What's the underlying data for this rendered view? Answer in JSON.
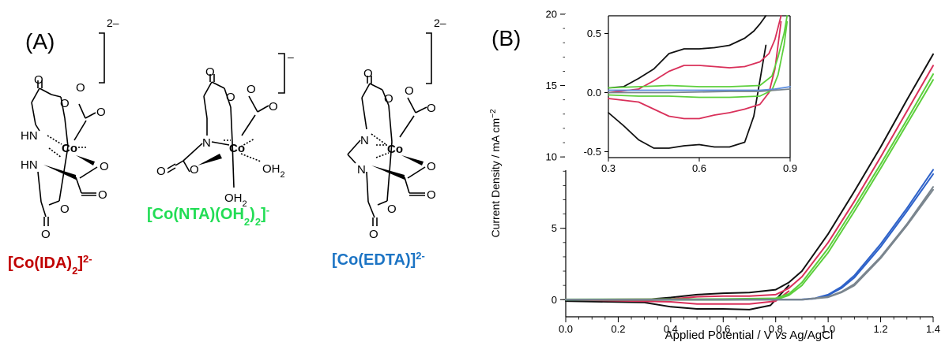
{
  "panel_a": {
    "label": "(A)",
    "charges": [
      "2–",
      "–",
      "2–"
    ],
    "atoms": {
      "co": "Co",
      "o": "O",
      "n": "N",
      "hn": "HN",
      "oh2": "OH",
      "oh2_sub": "2"
    },
    "complexes": [
      {
        "name_main": "[Co(IDA)",
        "name_sub": "2",
        "name_close": "]",
        "name_sup": "2-",
        "color": "#c00000"
      },
      {
        "name_main": "[Co(NTA)(OH",
        "name_sub": "2",
        "name_close": ")",
        "name_sub2": "2",
        "name_close2": "]",
        "name_sup": "-",
        "color": "#22dd55"
      },
      {
        "name_main": "[Co(EDTA)]",
        "name_sup": "2-",
        "color": "#1c74c4"
      }
    ]
  },
  "panel_b": {
    "label": "(B)"
  },
  "chart_data": [
    {
      "type": "line",
      "xlabel_parts": [
        "Applied Potential / V ",
        "vs",
        " Ag/AgCl"
      ],
      "ylabel": "Current Density / mA cm",
      "ylabel_sup": "−2",
      "xlim": [
        0.0,
        1.4
      ],
      "ylim": [
        -1.2,
        20
      ],
      "xticks": [
        "0.0",
        "0.2",
        "0.4",
        "0.6",
        "0.8",
        "1.0",
        "1.2",
        "1.4"
      ],
      "yticks": [
        "0",
        "5",
        "10",
        "15",
        "20"
      ],
      "grid": false,
      "series": [
        {
          "color": "#111111",
          "x": [
            0.0,
            0.3,
            0.4,
            0.5,
            0.6,
            0.7,
            0.8,
            0.85,
            0.9,
            1.0,
            1.1,
            1.2,
            1.3,
            1.4
          ],
          "y": [
            -0.05,
            0.0,
            0.15,
            0.35,
            0.45,
            0.5,
            0.7,
            1.2,
            2.0,
            4.6,
            7.6,
            10.7,
            14.0,
            17.2
          ]
        },
        {
          "color": "#111111",
          "x": [
            0.0,
            0.3,
            0.4,
            0.5,
            0.6,
            0.7,
            0.78,
            0.85
          ],
          "y": [
            -0.1,
            -0.2,
            -0.5,
            -0.65,
            -0.65,
            -0.7,
            -0.4,
            1.0
          ]
        },
        {
          "color": "#d9305a",
          "x": [
            0.0,
            0.4,
            0.5,
            0.6,
            0.7,
            0.8,
            0.85,
            0.9,
            1.0,
            1.1,
            1.2,
            1.3,
            1.4
          ],
          "y": [
            0.0,
            0.05,
            0.2,
            0.25,
            0.25,
            0.35,
            0.8,
            1.6,
            4.0,
            6.9,
            10.0,
            13.2,
            16.4
          ]
        },
        {
          "color": "#d9305a",
          "x": [
            0.0,
            0.4,
            0.5,
            0.6,
            0.7,
            0.8,
            0.85
          ],
          "y": [
            0.0,
            -0.15,
            -0.3,
            -0.3,
            -0.3,
            -0.1,
            0.6
          ]
        },
        {
          "color": "#5ccf3c",
          "x": [
            0.0,
            0.6,
            0.8,
            0.85,
            0.9,
            1.0,
            1.1,
            1.2,
            1.3,
            1.4
          ],
          "y": [
            0.02,
            0.05,
            0.1,
            0.4,
            1.2,
            3.6,
            6.5,
            9.5,
            12.6,
            15.8
          ]
        },
        {
          "color": "#5ccf3c",
          "x": [
            0.0,
            0.6,
            0.8,
            0.85,
            0.9,
            1.0,
            1.1,
            1.2,
            1.3,
            1.4
          ],
          "y": [
            -0.02,
            -0.02,
            0.0,
            0.3,
            1.0,
            3.3,
            6.2,
            9.2,
            12.3,
            15.4
          ]
        },
        {
          "color": "#2e62c9",
          "x": [
            0.0,
            0.9,
            0.95,
            1.0,
            1.05,
            1.1,
            1.2,
            1.3,
            1.4
          ],
          "y": [
            0.0,
            0.02,
            0.1,
            0.35,
            0.9,
            1.7,
            3.9,
            6.4,
            9.1
          ]
        },
        {
          "color": "#2e62c9",
          "x": [
            0.0,
            0.9,
            0.95,
            1.0,
            1.05,
            1.1,
            1.2,
            1.3,
            1.4
          ],
          "y": [
            0.0,
            0.0,
            0.07,
            0.3,
            0.8,
            1.55,
            3.7,
            6.2,
            8.8
          ]
        },
        {
          "color": "#7a858e",
          "x": [
            0.0,
            0.9,
            1.0,
            1.05,
            1.1,
            1.2,
            1.3,
            1.4
          ],
          "y": [
            0.0,
            0.0,
            0.2,
            0.55,
            1.1,
            3.0,
            5.3,
            7.9
          ]
        },
        {
          "color": "#7a858e",
          "x": [
            0.0,
            0.9,
            1.0,
            1.05,
            1.1,
            1.2,
            1.3,
            1.4
          ],
          "y": [
            0.0,
            0.0,
            0.17,
            0.5,
            1.0,
            2.9,
            5.2,
            7.7
          ]
        }
      ]
    },
    {
      "type": "line",
      "inset": true,
      "xlim": [
        0.3,
        0.9
      ],
      "ylim": [
        -0.55,
        0.65
      ],
      "xticks": [
        "0.3",
        "0.6",
        "0.9"
      ],
      "yticks": [
        "-0.5",
        "0.0",
        "0.5"
      ],
      "grid": false,
      "series": [
        {
          "color": "#111111",
          "x": [
            0.3,
            0.35,
            0.4,
            0.45,
            0.5,
            0.55,
            0.6,
            0.65,
            0.7,
            0.75,
            0.78,
            0.8,
            0.82
          ],
          "y": [
            0.04,
            0.05,
            0.12,
            0.2,
            0.33,
            0.37,
            0.37,
            0.38,
            0.4,
            0.46,
            0.52,
            0.58,
            0.65
          ]
        },
        {
          "color": "#111111",
          "x": [
            0.3,
            0.35,
            0.4,
            0.45,
            0.5,
            0.55,
            0.6,
            0.65,
            0.7,
            0.75,
            0.78,
            0.8,
            0.82
          ],
          "y": [
            -0.17,
            -0.28,
            -0.4,
            -0.47,
            -0.47,
            -0.45,
            -0.44,
            -0.46,
            -0.46,
            -0.42,
            -0.2,
            0.1,
            0.4
          ]
        },
        {
          "color": "#d9305a",
          "x": [
            0.3,
            0.4,
            0.45,
            0.5,
            0.55,
            0.6,
            0.65,
            0.7,
            0.75,
            0.8,
            0.83,
            0.85,
            0.87
          ],
          "y": [
            0.0,
            0.03,
            0.1,
            0.18,
            0.23,
            0.23,
            0.22,
            0.21,
            0.22,
            0.26,
            0.33,
            0.45,
            0.65
          ]
        },
        {
          "color": "#d9305a",
          "x": [
            0.3,
            0.4,
            0.45,
            0.5,
            0.55,
            0.6,
            0.65,
            0.7,
            0.75,
            0.8,
            0.83,
            0.85,
            0.87
          ],
          "y": [
            -0.05,
            -0.08,
            -0.14,
            -0.2,
            -0.22,
            -0.22,
            -0.19,
            -0.17,
            -0.14,
            -0.1,
            0.0,
            0.2,
            0.6
          ]
        },
        {
          "color": "#5ccf3c",
          "x": [
            0.3,
            0.4,
            0.5,
            0.6,
            0.7,
            0.8,
            0.84,
            0.86,
            0.88,
            0.89
          ],
          "y": [
            0.04,
            0.05,
            0.06,
            0.05,
            0.05,
            0.06,
            0.14,
            0.3,
            0.5,
            0.65
          ]
        },
        {
          "color": "#5ccf3c",
          "x": [
            0.3,
            0.4,
            0.5,
            0.6,
            0.7,
            0.8,
            0.84,
            0.86,
            0.88,
            0.89
          ],
          "y": [
            -0.02,
            -0.03,
            -0.03,
            -0.04,
            -0.04,
            -0.03,
            0.02,
            0.15,
            0.4,
            0.6
          ]
        },
        {
          "color": "#5b8de0",
          "x": [
            0.3,
            0.5,
            0.7,
            0.8,
            0.85,
            0.9
          ],
          "y": [
            0.02,
            0.02,
            0.02,
            0.02,
            0.03,
            0.05
          ]
        },
        {
          "color": "#7a858e",
          "x": [
            0.3,
            0.5,
            0.7,
            0.8,
            0.85,
            0.9
          ],
          "y": [
            0.0,
            0.0,
            0.01,
            0.01,
            0.02,
            0.03
          ]
        }
      ]
    }
  ]
}
